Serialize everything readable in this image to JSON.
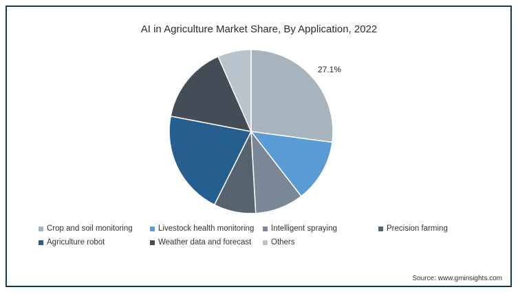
{
  "chart_data": {
    "type": "pie",
    "title": "AI in Agriculture Market Share, By Application, 2022",
    "slices": [
      {
        "name": "Crop and soil monitoring",
        "value": 27.1,
        "color": "#a8b4bd",
        "label": "27.1%"
      },
      {
        "name": "Livestock health monitoring",
        "value": 12.4,
        "color": "#5b9bd5",
        "label": ""
      },
      {
        "name": "Intelligent spraying",
        "value": 9.6,
        "color": "#7a8797",
        "label": ""
      },
      {
        "name": "Precision farming",
        "value": 8.3,
        "color": "#56636f",
        "label": ""
      },
      {
        "name": "Agriculture robot",
        "value": 20.6,
        "color": "#255e8f",
        "label": ""
      },
      {
        "name": "Weather data and forecast",
        "value": 15.4,
        "color": "#444c56",
        "label": ""
      },
      {
        "name": "Others",
        "value": 6.6,
        "color": "#b8c3cc",
        "label": ""
      }
    ],
    "legend_position": "bottom"
  },
  "source": "Source: www.gminsights.com"
}
